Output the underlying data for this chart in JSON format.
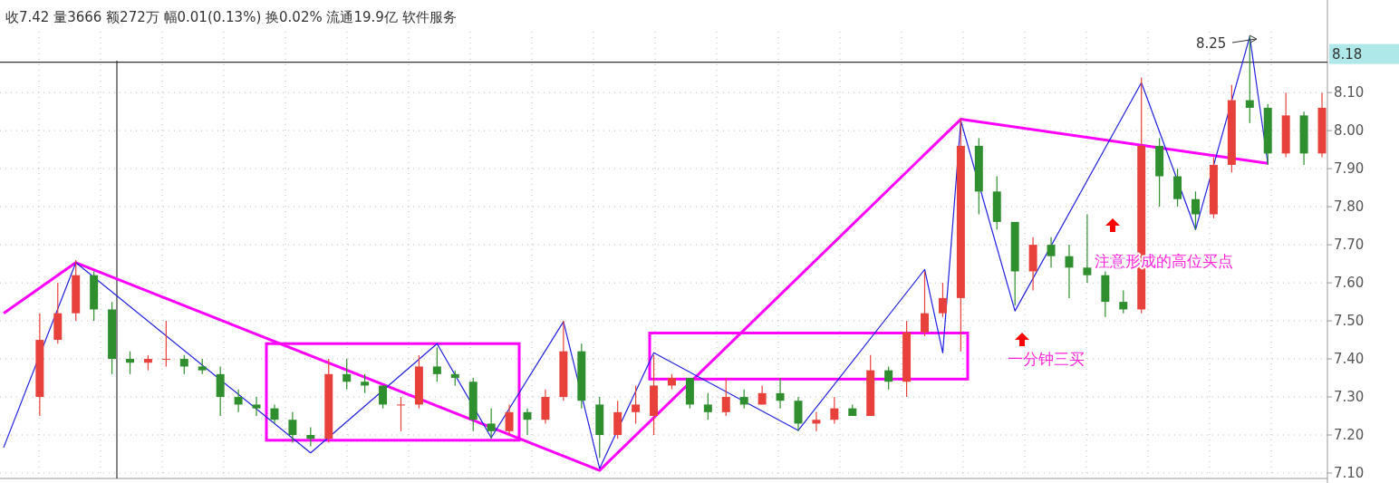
{
  "chart_data": {
    "type": "candlestick",
    "title": "收7.42 量3666 额272万 幅0.01(0.13%) 换0.02% 流通19.9亿 软件服务",
    "categories": [
      null,
      null,
      null,
      null,
      null,
      null,
      null,
      null,
      null,
      null,
      null,
      null,
      null,
      null,
      null,
      null,
      null,
      null,
      null,
      null,
      null,
      null,
      null,
      null,
      null,
      null,
      null,
      null,
      null,
      null,
      null,
      null,
      null,
      null,
      null,
      null,
      null,
      null,
      null,
      null,
      null,
      null,
      null,
      null,
      null,
      null,
      null,
      null,
      null,
      null,
      null,
      null,
      null,
      null,
      null,
      null,
      null,
      null,
      null,
      null,
      null,
      null,
      null,
      null,
      null,
      null,
      null,
      null,
      null,
      null,
      null,
      null,
      null,
      null
    ],
    "ohlc": [
      null,
      null,
      [
        7.3,
        7.52,
        7.25,
        7.45
      ],
      [
        7.45,
        7.6,
        7.44,
        7.52
      ],
      [
        7.52,
        7.66,
        7.5,
        7.62
      ],
      [
        7.62,
        7.63,
        7.5,
        7.53
      ],
      [
        7.53,
        7.55,
        7.36,
        7.4
      ],
      [
        7.4,
        7.42,
        7.36,
        7.39
      ],
      [
        7.39,
        7.41,
        7.37,
        7.4
      ],
      [
        7.4,
        7.5,
        7.38,
        7.4
      ],
      [
        7.4,
        7.41,
        7.36,
        7.38
      ],
      [
        7.38,
        7.4,
        7.36,
        7.37
      ],
      [
        7.36,
        7.38,
        7.25,
        7.3
      ],
      [
        7.3,
        7.32,
        7.26,
        7.28
      ],
      [
        7.28,
        7.3,
        7.25,
        7.27
      ],
      [
        7.27,
        7.28,
        7.23,
        7.24
      ],
      [
        7.24,
        7.26,
        7.18,
        7.2
      ],
      [
        7.2,
        7.22,
        7.17,
        7.19
      ],
      [
        7.19,
        7.4,
        7.18,
        7.36
      ],
      [
        7.36,
        7.4,
        7.32,
        7.34
      ],
      [
        7.34,
        7.36,
        7.31,
        7.33
      ],
      [
        7.33,
        7.33,
        7.27,
        7.28
      ],
      [
        7.28,
        7.3,
        7.21,
        7.28
      ],
      [
        7.28,
        7.41,
        7.27,
        7.38
      ],
      [
        7.38,
        7.43,
        7.34,
        7.36
      ],
      [
        7.36,
        7.37,
        7.33,
        7.35
      ],
      [
        7.34,
        7.35,
        7.21,
        7.24
      ],
      [
        7.23,
        7.27,
        7.19,
        7.21
      ],
      [
        7.21,
        7.28,
        7.2,
        7.26
      ],
      [
        7.26,
        7.27,
        7.2,
        7.24
      ],
      [
        7.24,
        7.32,
        7.23,
        7.3
      ],
      [
        7.3,
        7.5,
        7.29,
        7.42
      ],
      [
        7.42,
        7.44,
        7.27,
        7.29
      ],
      [
        7.28,
        7.3,
        7.14,
        7.2
      ],
      [
        7.2,
        7.29,
        7.19,
        7.26
      ],
      [
        7.26,
        7.33,
        7.23,
        7.28
      ],
      [
        7.25,
        7.41,
        7.2,
        7.33
      ],
      [
        7.33,
        7.36,
        7.32,
        7.35
      ],
      [
        7.35,
        7.35,
        7.27,
        7.28
      ],
      [
        7.28,
        7.31,
        7.24,
        7.26
      ],
      [
        7.26,
        7.35,
        7.25,
        7.3
      ],
      [
        7.3,
        7.32,
        7.27,
        7.28
      ],
      [
        7.28,
        7.33,
        7.28,
        7.31
      ],
      [
        7.31,
        7.35,
        7.27,
        7.29
      ],
      [
        7.29,
        7.3,
        7.21,
        7.23
      ],
      [
        7.23,
        7.26,
        7.21,
        7.24
      ],
      [
        7.24,
        7.3,
        7.23,
        7.27
      ],
      [
        7.27,
        7.28,
        7.25,
        7.25
      ],
      [
        7.25,
        7.41,
        7.25,
        7.37
      ],
      [
        7.37,
        7.38,
        7.32,
        7.34
      ],
      [
        7.34,
        7.5,
        7.3,
        7.47
      ],
      [
        7.47,
        7.63,
        7.46,
        7.52
      ],
      [
        7.52,
        7.6,
        7.51,
        7.56
      ],
      [
        7.56,
        8.03,
        7.42,
        7.96
      ],
      [
        7.96,
        7.98,
        7.78,
        7.84
      ],
      [
        7.84,
        7.88,
        7.74,
        7.76
      ],
      [
        7.76,
        7.76,
        7.54,
        7.63
      ],
      [
        7.63,
        7.72,
        7.58,
        7.7
      ],
      [
        7.7,
        7.72,
        7.64,
        7.67
      ],
      [
        7.67,
        7.7,
        7.56,
        7.64
      ],
      [
        7.64,
        7.78,
        7.6,
        7.62
      ],
      [
        7.62,
        7.63,
        7.51,
        7.55
      ],
      [
        7.55,
        7.58,
        7.52,
        7.53
      ],
      [
        7.53,
        8.14,
        7.52,
        7.96
      ],
      [
        7.96,
        7.98,
        7.8,
        7.88
      ],
      [
        7.88,
        7.9,
        7.8,
        7.82
      ],
      [
        7.82,
        7.84,
        7.74,
        7.78
      ],
      [
        7.78,
        7.93,
        7.77,
        7.91
      ],
      [
        7.91,
        8.12,
        7.89,
        8.08
      ],
      [
        8.08,
        8.25,
        8.02,
        8.06
      ],
      [
        8.06,
        8.07,
        7.91,
        7.94
      ],
      [
        7.94,
        8.1,
        7.93,
        8.04
      ],
      [
        8.04,
        8.05,
        7.91,
        7.94
      ],
      [
        7.94,
        8.1,
        7.93,
        8.06
      ]
    ],
    "series": [
      {
        "type": "line",
        "color": "#ff00ff",
        "values": [
          7.52,
          null,
          null,
          null,
          7.653,
          null,
          null,
          null,
          null,
          null,
          null,
          null,
          null,
          null,
          null,
          null,
          null,
          null,
          null,
          null,
          null,
          null,
          null,
          null,
          null,
          null,
          null,
          null,
          null,
          null,
          null,
          null,
          null,
          7.107,
          null,
          null,
          null,
          null,
          null,
          null,
          null,
          null,
          null,
          null,
          null,
          null,
          null,
          null,
          null,
          null,
          null,
          null,
          null,
          8.03,
          null,
          null,
          null,
          null,
          null,
          null,
          null,
          null,
          null,
          null,
          null,
          null,
          null,
          null,
          null,
          null,
          7.914,
          null,
          null,
          null
        ]
      },
      {
        "type": "line",
        "color": "#1f1fe0",
        "values": [
          7.167,
          null,
          null,
          null,
          7.653,
          null,
          null,
          null,
          null,
          null,
          null,
          null,
          null,
          null,
          null,
          null,
          null,
          7.153,
          null,
          null,
          null,
          null,
          null,
          null,
          7.44,
          null,
          null,
          7.193,
          null,
          null,
          null,
          7.498,
          null,
          7.112,
          null,
          null,
          7.416,
          null,
          null,
          null,
          null,
          null,
          null,
          null,
          7.212,
          null,
          null,
          null,
          null,
          null,
          null,
          7.635,
          7.416,
          8.026,
          null,
          null,
          7.526,
          null,
          null,
          null,
          null,
          null,
          null,
          8.126,
          null,
          null,
          7.74,
          null,
          null,
          8.247,
          7.914,
          null,
          null,
          null
        ]
      }
    ],
    "ylim": [
      7.1,
      8.26
    ],
    "yticks": [
      {
        "value": 7.1,
        "label": "7.10"
      },
      {
        "value": 7.2,
        "label": "7.20"
      },
      {
        "value": 7.3,
        "label": "7.30"
      },
      {
        "value": 7.4,
        "label": "7.40"
      },
      {
        "value": 7.5,
        "label": "7.50"
      },
      {
        "value": 7.6,
        "label": "7.60"
      },
      {
        "value": 7.7,
        "label": "7.70"
      },
      {
        "value": 7.8,
        "label": "7.80"
      },
      {
        "value": 7.9,
        "label": "7.90"
      },
      {
        "value": 8.0,
        "label": "8.00"
      },
      {
        "value": 8.1,
        "label": "8.10"
      }
    ],
    "grid": true,
    "tick_labels": "y",
    "ref_lines": [
      {
        "axis": "y",
        "value": 8.18,
        "label": "8.18",
        "color": "#333333"
      }
    ],
    "annotations": [
      "8.25",
      "一分钟三买",
      "注意形成的高位买点"
    ]
  }
}
